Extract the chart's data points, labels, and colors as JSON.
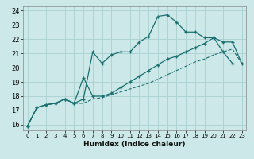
{
  "xlabel": "Humidex (Indice chaleur)",
  "background_color": "#cde8e8",
  "grid_color": "#aad0d0",
  "line_color": "#1a7070",
  "xlim": [
    -0.5,
    23.5
  ],
  "ylim": [
    15.6,
    24.3
  ],
  "yticks": [
    16,
    17,
    18,
    19,
    20,
    21,
    22,
    23,
    24
  ],
  "xticks": [
    0,
    1,
    2,
    3,
    4,
    5,
    6,
    7,
    8,
    9,
    10,
    11,
    12,
    13,
    14,
    15,
    16,
    17,
    18,
    19,
    20,
    21,
    22,
    23
  ],
  "s1x": [
    0,
    1,
    2,
    3,
    4,
    5,
    6,
    7,
    8,
    9,
    10,
    11,
    12,
    13,
    14,
    15,
    16,
    17,
    18,
    19,
    20,
    21,
    22
  ],
  "s1y": [
    15.9,
    17.2,
    17.4,
    17.5,
    17.8,
    17.5,
    17.8,
    21.1,
    20.3,
    20.9,
    21.1,
    21.1,
    21.8,
    22.2,
    23.6,
    23.7,
    23.2,
    22.5,
    22.5,
    22.1,
    22.1,
    21.1,
    20.3
  ],
  "s2x": [
    0,
    1,
    2,
    3,
    4,
    5,
    6,
    7,
    8,
    9,
    10,
    11,
    12,
    13,
    14,
    15,
    16,
    17,
    18,
    19,
    20,
    21,
    22,
    23
  ],
  "s2y": [
    15.9,
    17.2,
    17.4,
    17.5,
    17.8,
    17.5,
    19.3,
    18.0,
    18.0,
    18.2,
    18.6,
    19.0,
    19.4,
    19.8,
    20.2,
    20.6,
    20.8,
    21.1,
    21.4,
    21.7,
    22.1,
    21.8,
    21.8,
    20.3
  ],
  "s3x": [
    0,
    1,
    2,
    3,
    4,
    5,
    6,
    7,
    8,
    9,
    10,
    11,
    12,
    13,
    14,
    15,
    16,
    17,
    18,
    19,
    20,
    21,
    22,
    23
  ],
  "s3y": [
    15.9,
    17.2,
    17.4,
    17.5,
    17.8,
    17.5,
    17.5,
    17.8,
    17.9,
    18.1,
    18.3,
    18.5,
    18.7,
    18.9,
    19.2,
    19.5,
    19.8,
    20.1,
    20.4,
    20.6,
    20.9,
    21.1,
    21.3,
    20.3
  ]
}
